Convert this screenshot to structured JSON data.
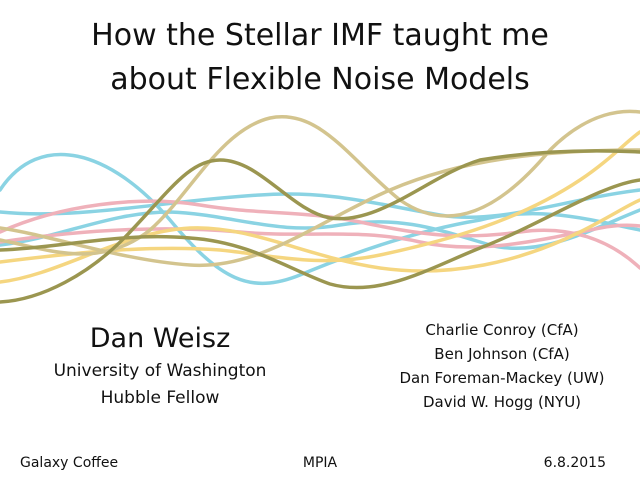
{
  "title": {
    "line1": "How the Stellar IMF taught me",
    "line2": "about Flexible Noise Models"
  },
  "presenter": {
    "name": "Dan Weisz",
    "affiliation1": "University of Washington",
    "affiliation2": "Hubble Fellow"
  },
  "collaborators": [
    "Charlie Conroy (CfA)",
    "Ben Johnson (CfA)",
    "Dan Foreman-Mackey (UW)",
    "David W. Hogg (NYU)"
  ],
  "footer": {
    "event": "Galaxy Coffee",
    "venue": "MPIA",
    "date": "6.8.2015"
  },
  "colors": {
    "cyan": "#8ad3e3",
    "pink": "#efb1ba",
    "yellow": "#f5d680",
    "tan": "#d3c48e",
    "olive": "#9b9650"
  }
}
